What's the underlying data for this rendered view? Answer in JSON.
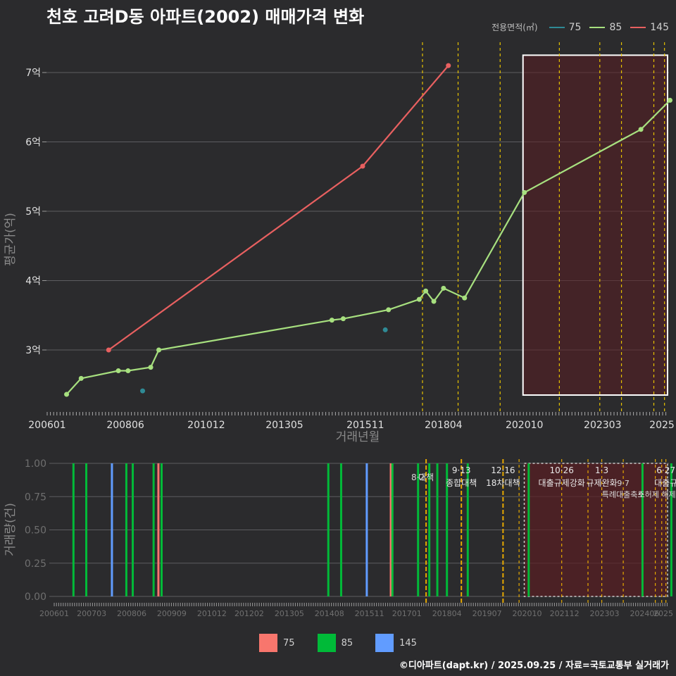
{
  "title": "천호 고려D동 아파트(2002) 매매가격 변화",
  "footer": "©디아파트(dapt.kr) / 2025.09.25 / 자료=국토교통부 실거래가",
  "legend_title": "전용면적(㎡)",
  "colors": {
    "s75": "#2f8a95",
    "s85": "#a7e07f",
    "s145": "#e86060",
    "b75": "#f8766d",
    "b85": "#00ba38",
    "b145": "#619cff",
    "policy": "#e6c200",
    "box": "#5a1e22"
  },
  "chart_data": [
    {
      "type": "line",
      "title": "천호 고려D동 아파트(2002) 매매가격 변화",
      "xlabel": "거래년월",
      "ylabel": "평균가(억)",
      "x_ticks": [
        "200601",
        "200806",
        "201012",
        "201305",
        "201511",
        "201804",
        "202010",
        "202303",
        "2025"
      ],
      "y_ticks": [
        {
          "value": 3,
          "label": "3억"
        },
        {
          "value": 4,
          "label": "4억"
        },
        {
          "value": 5,
          "label": "5억"
        },
        {
          "value": 6,
          "label": "6억"
        },
        {
          "value": 7,
          "label": "7억"
        }
      ],
      "ylim": [
        2.1,
        7.5
      ],
      "legend_position": "top-right",
      "series": [
        {
          "name": "75",
          "color": "#2f8a95",
          "line": false,
          "points": [
            [
              2008.95,
              2.41
            ],
            [
              2016.45,
              3.29
            ]
          ]
        },
        {
          "name": "85",
          "color": "#a7e07f",
          "line": true,
          "points": [
            [
              2006.6,
              2.36
            ],
            [
              2007.05,
              2.59
            ],
            [
              2008.2,
              2.7
            ],
            [
              2008.5,
              2.7
            ],
            [
              2009.2,
              2.75
            ],
            [
              2009.45,
              3.0
            ],
            [
              2014.8,
              3.43
            ],
            [
              2015.15,
              3.45
            ],
            [
              2016.55,
              3.58
            ],
            [
              2017.5,
              3.73
            ],
            [
              2017.7,
              3.85
            ],
            [
              2017.95,
              3.7
            ],
            [
              2018.25,
              3.89
            ],
            [
              2018.9,
              3.75
            ],
            [
              2020.75,
              5.27
            ],
            [
              2024.35,
              6.18
            ],
            [
              2025.25,
              6.6
            ]
          ]
        },
        {
          "name": "145",
          "color": "#e86060",
          "line": true,
          "points": [
            [
              2007.9,
              3.0
            ],
            [
              2015.75,
              5.65
            ],
            [
              2018.4,
              7.1
            ]
          ]
        }
      ],
      "policy_lines": [
        2017.6,
        2018.7,
        2020.0,
        2021.83,
        2023.08,
        2023.75,
        2024.75,
        2025.08
      ],
      "highlight_box": {
        "x_from": 2020.75,
        "x_to": 2025.3,
        "y_from": 2.35,
        "y_to": 7.25
      }
    },
    {
      "type": "bar",
      "xlabel": "",
      "ylabel": "거래량(건)",
      "x_ticks": [
        "200601",
        "200703",
        "200806",
        "200909",
        "201012",
        "201202",
        "201305",
        "201408",
        "201511",
        "201701",
        "201804",
        "201907",
        "202010",
        "202112",
        "202303",
        "202406",
        "2025"
      ],
      "y_ticks": [
        "0.00",
        "0.25",
        "0.50",
        "0.75",
        "1.00"
      ],
      "ylim": [
        0,
        1
      ],
      "series": [
        {
          "name": "75",
          "color": "#f8766d",
          "bars": [
            2009.25,
            2016.5
          ]
        },
        {
          "name": "85",
          "color": "#00ba38",
          "bars": [
            2006.6,
            2007.0,
            2008.25,
            2008.45,
            2009.1,
            2009.35,
            2014.55,
            2014.95,
            2016.55,
            2017.35,
            2017.7,
            2017.95,
            2018.25,
            2018.9,
            2020.8,
            2024.35,
            2025.25
          ]
        },
        {
          "name": "145",
          "color": "#619cff",
          "bars": [
            2007.8,
            2015.75
          ]
        }
      ],
      "policy_lines": [
        2017.6,
        2018.7,
        2020.0,
        2020.5,
        2021.83,
        2022.65,
        2023.08,
        2023.75,
        2024.75,
        2024.95,
        2025.08
      ],
      "policy_labels": [
        {
          "date": "8·2",
          "name": "대책",
          "x": 2017.6
        },
        {
          "date": "9·13",
          "name": "종합대책",
          "x": 2018.7
        },
        {
          "date": "12·16",
          "name": "18차대책",
          "x": 2020.0
        },
        {
          "date": "10·26",
          "name": "대출규제강화",
          "x": 2021.83
        },
        {
          "date": "1·3",
          "name": "규제완화",
          "x": 2023.08
        },
        {
          "date": "9·7",
          "name": "특례대출축소",
          "x": 2023.75
        },
        {
          "date": "",
          "name": "토허제 해제",
          "x": 2024.75
        },
        {
          "date": "6·27",
          "name": "대출규",
          "x": 2025.08
        }
      ],
      "highlight_box": {
        "x_from": 2020.75,
        "x_to": 2025.3
      }
    }
  ],
  "bottom_legend": [
    {
      "name": "75",
      "color": "#f8766d"
    },
    {
      "name": "85",
      "color": "#00ba38"
    },
    {
      "name": "145",
      "color": "#619cff"
    }
  ]
}
